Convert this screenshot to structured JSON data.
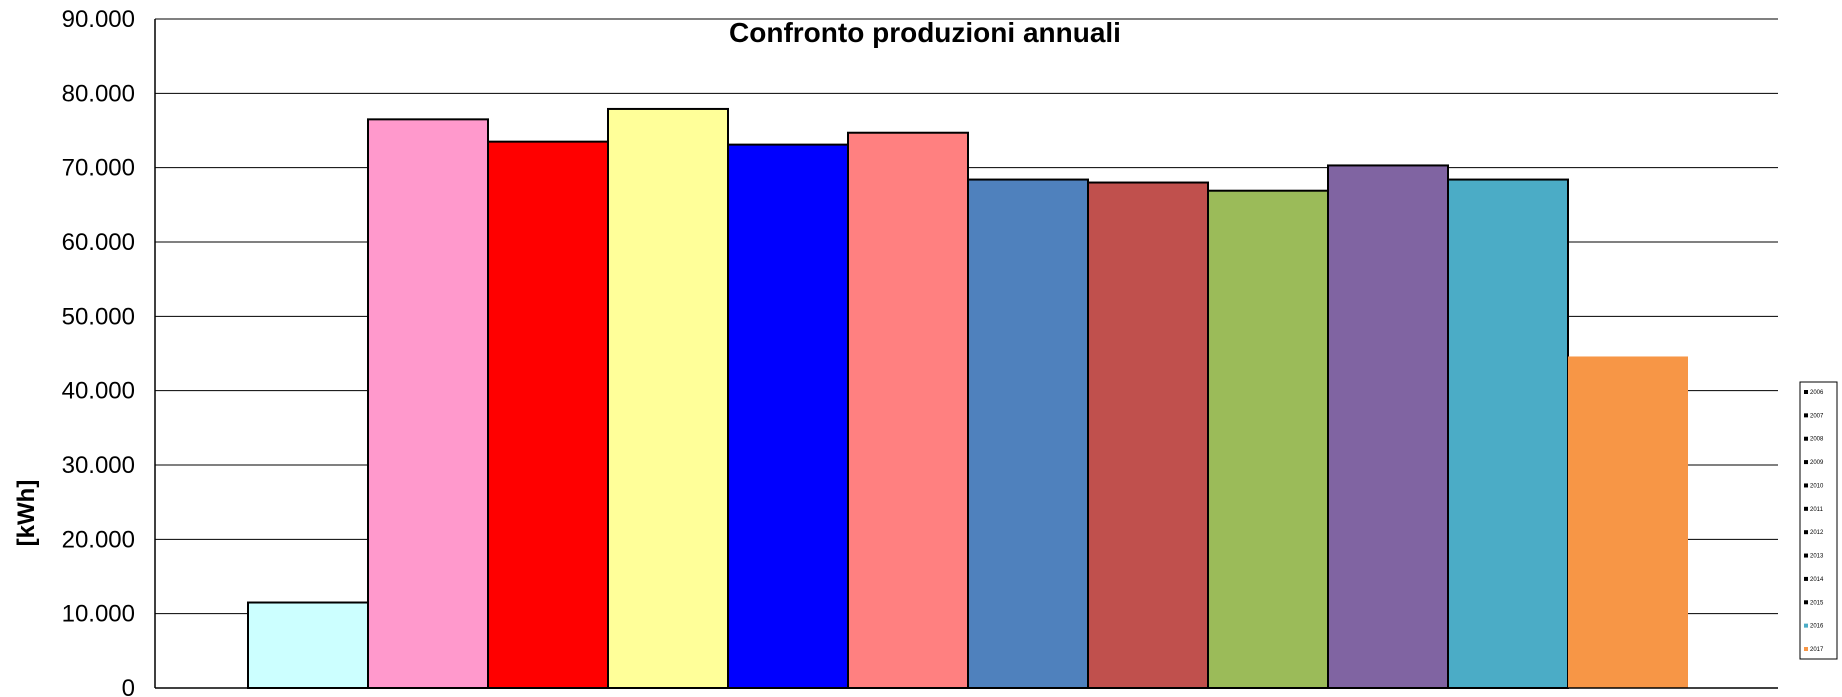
{
  "chart_data": {
    "type": "bar",
    "title": "Confronto produzioni annuali",
    "xlabel": "",
    "ylabel": "[kWh]",
    "ylim": [
      0,
      90000
    ],
    "yticks": [
      0,
      10000,
      20000,
      30000,
      40000,
      50000,
      60000,
      70000,
      80000,
      90000
    ],
    "ytick_labels": [
      "0",
      "10.000",
      "20.000",
      "30.000",
      "40.000",
      "50.000",
      "60.000",
      "70.000",
      "80.000",
      "90.000"
    ],
    "grid": true,
    "legend_position": "right",
    "series": [
      {
        "name": "2006",
        "value": 11500,
        "color": "#CCFFFF"
      },
      {
        "name": "2007",
        "value": 76500,
        "color": "#FF99CC"
      },
      {
        "name": "2008",
        "value": 73500,
        "color": "#FF0000"
      },
      {
        "name": "2009",
        "value": 77900,
        "color": "#FFFF99"
      },
      {
        "name": "2010",
        "value": 73100,
        "color": "#0000FF"
      },
      {
        "name": "2011",
        "value": 74700,
        "color": "#FF8080"
      },
      {
        "name": "2012",
        "value": 68400,
        "color": "#4F81BD"
      },
      {
        "name": "2013",
        "value": 68000,
        "color": "#C0504D"
      },
      {
        "name": "2014",
        "value": 66900,
        "color": "#9BBB59"
      },
      {
        "name": "2015",
        "value": 70300,
        "color": "#8064A2"
      },
      {
        "name": "2016",
        "value": 68400,
        "color": "#4BACC6"
      },
      {
        "name": "2017",
        "value": 44600,
        "color": "#F79646"
      }
    ]
  }
}
